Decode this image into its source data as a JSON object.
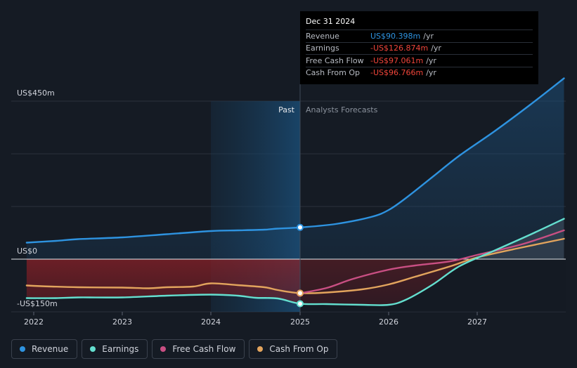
{
  "chart_data": {
    "type": "line",
    "y_axis": {
      "label_top": "US$450m",
      "label_zero": "US$0",
      "label_bottom": "-US$150m",
      "ylim": [
        -150,
        450
      ]
    },
    "x_ticks": [
      "2022",
      "2023",
      "2024",
      "2025",
      "2026",
      "2027"
    ],
    "past_label": "Past",
    "forecast_label": "Analysts Forecasts",
    "series": [
      {
        "name": "Revenue",
        "color": "#2e93e0",
        "points": [
          [
            2021.92,
            47
          ],
          [
            2022.25,
            52
          ],
          [
            2022.5,
            57
          ],
          [
            2023.0,
            62
          ],
          [
            2023.5,
            71
          ],
          [
            2024.0,
            80
          ],
          [
            2024.3,
            82
          ],
          [
            2024.6,
            84
          ],
          [
            2024.75,
            87
          ],
          [
            2025.0,
            90.4
          ],
          [
            2025.4,
            100
          ],
          [
            2025.8,
            120
          ],
          [
            2026.0,
            140
          ],
          [
            2026.2,
            175
          ],
          [
            2026.5,
            235
          ],
          [
            2026.8,
            295
          ],
          [
            2027.2,
            365
          ],
          [
            2027.6,
            440
          ],
          [
            2027.98,
            515
          ]
        ]
      },
      {
        "name": "Earnings",
        "color": "#64dfcf",
        "points": [
          [
            2021.92,
            -111
          ],
          [
            2022.25,
            -111
          ],
          [
            2022.5,
            -109
          ],
          [
            2023.0,
            -109
          ],
          [
            2023.5,
            -104
          ],
          [
            2024.0,
            -101
          ],
          [
            2024.3,
            -104
          ],
          [
            2024.5,
            -110
          ],
          [
            2024.75,
            -112
          ],
          [
            2025.0,
            -126.9
          ],
          [
            2025.3,
            -128
          ],
          [
            2025.7,
            -130
          ],
          [
            2026.0,
            -130
          ],
          [
            2026.2,
            -115
          ],
          [
            2026.5,
            -72
          ],
          [
            2026.8,
            -20
          ],
          [
            2027.2,
            25
          ],
          [
            2027.6,
            70
          ],
          [
            2027.98,
            115
          ]
        ]
      },
      {
        "name": "Free Cash Flow",
        "color": "#c94f83",
        "points": [
          [
            2025.0,
            -97.1
          ],
          [
            2025.3,
            -82
          ],
          [
            2025.6,
            -56
          ],
          [
            2026.0,
            -30
          ],
          [
            2026.3,
            -18
          ],
          [
            2026.7,
            -6
          ],
          [
            2027.0,
            12
          ],
          [
            2027.5,
            42
          ],
          [
            2027.98,
            82
          ]
        ]
      },
      {
        "name": "Cash From Op",
        "color": "#e2a45d",
        "points": [
          [
            2021.92,
            -75
          ],
          [
            2022.2,
            -78
          ],
          [
            2022.5,
            -80
          ],
          [
            2023.0,
            -81
          ],
          [
            2023.3,
            -83
          ],
          [
            2023.5,
            -80
          ],
          [
            2023.8,
            -78
          ],
          [
            2024.0,
            -69
          ],
          [
            2024.3,
            -74
          ],
          [
            2024.6,
            -80
          ],
          [
            2024.75,
            -88
          ],
          [
            2025.0,
            -96.8
          ],
          [
            2025.3,
            -95
          ],
          [
            2025.7,
            -86
          ],
          [
            2026.0,
            -72
          ],
          [
            2026.3,
            -50
          ],
          [
            2026.7,
            -20
          ],
          [
            2027.0,
            5
          ],
          [
            2027.5,
            33
          ],
          [
            2027.98,
            58
          ]
        ]
      }
    ]
  },
  "tooltip": {
    "date": "Dec 31 2024",
    "rows": [
      {
        "label": "Revenue",
        "value": "US$90.398m",
        "unit": "/yr",
        "color": "#2e93e0"
      },
      {
        "label": "Earnings",
        "value": "-US$126.874m",
        "unit": "/yr",
        "color": "#f0453a"
      },
      {
        "label": "Free Cash Flow",
        "value": "-US$97.061m",
        "unit": "/yr",
        "color": "#f0453a"
      },
      {
        "label": "Cash From Op",
        "value": "-US$96.766m",
        "unit": "/yr",
        "color": "#f0453a"
      }
    ]
  },
  "legend": [
    {
      "label": "Revenue",
      "color": "#2e93e0"
    },
    {
      "label": "Earnings",
      "color": "#64dfcf"
    },
    {
      "label": "Free Cash Flow",
      "color": "#c94f83"
    },
    {
      "label": "Cash From Op",
      "color": "#e2a45d"
    }
  ]
}
